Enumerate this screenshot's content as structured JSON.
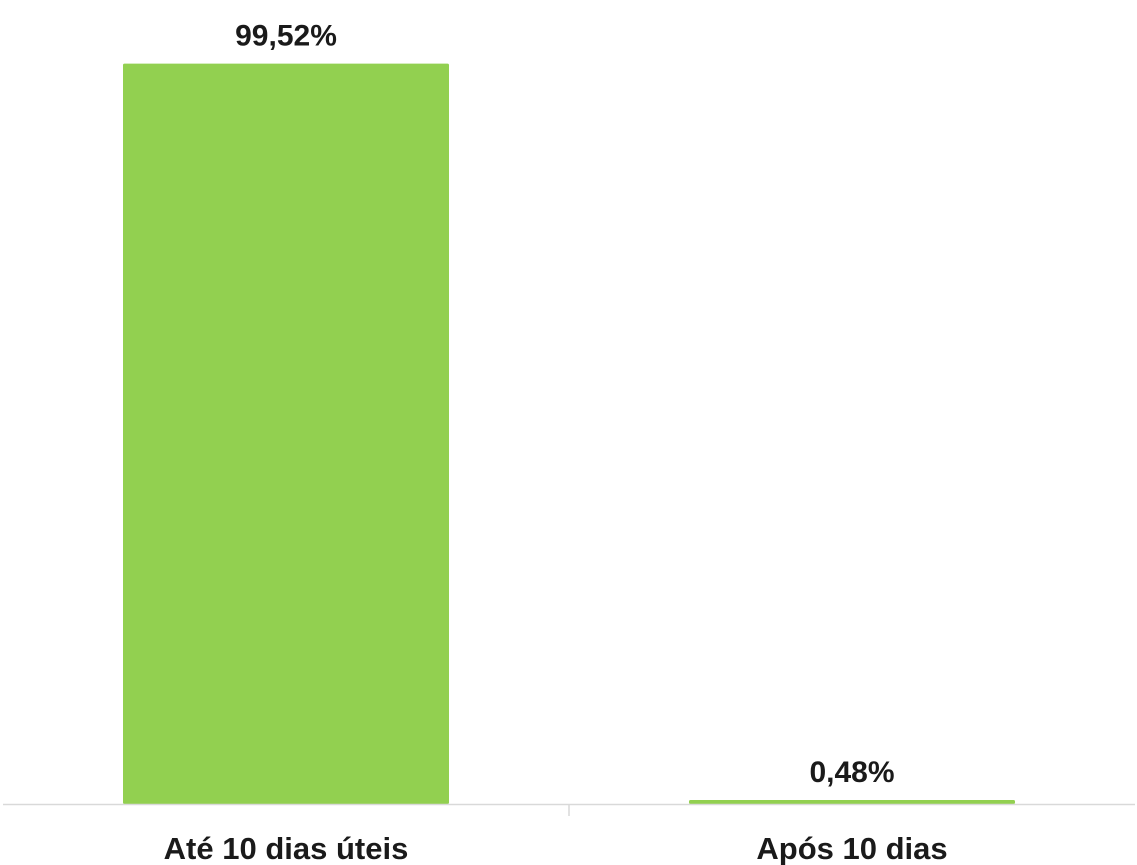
{
  "chart_data": {
    "type": "bar",
    "categories": [
      "Até 10 dias úteis",
      "Após 10 dias"
    ],
    "values": [
      99.52,
      0.48
    ],
    "data_labels": [
      "99,52%",
      "0,48%"
    ],
    "title": "",
    "xlabel": "",
    "ylabel": "",
    "ylim": [
      0,
      100
    ],
    "grid": false,
    "legend": "none",
    "bar_color": "#92d050",
    "axis_color": "#d9d9d9"
  }
}
